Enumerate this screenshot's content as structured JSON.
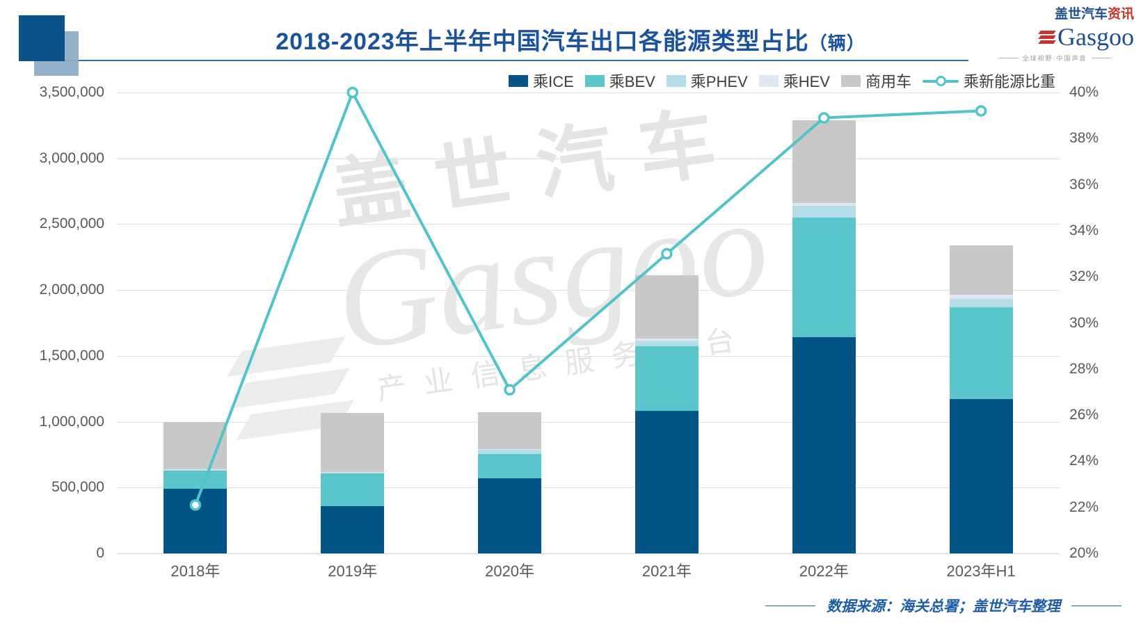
{
  "header": {
    "title": "2018-2023年上半年中国汽车出口各能源类型占比",
    "title_unit": "（辆）",
    "logo": {
      "cn_main": "盖世汽车",
      "cn_accent": "资讯",
      "en": "Gasgoo",
      "tagline": "全球视野·中国声音"
    }
  },
  "watermark": {
    "line1": "盖世汽车",
    "line2": "Gasgoo",
    "line3": "产业信息服务平台"
  },
  "footer": {
    "source": "数据来源：海关总署；盖世汽车整理"
  },
  "chart_data": {
    "type": "bar",
    "subtype": "stacked-bar-with-line",
    "title": "2018-2023年上半年中国汽车出口各能源类型占比（辆）",
    "categories": [
      "2018年",
      "2019年",
      "2020年",
      "2021年",
      "2022年",
      "2023年H1"
    ],
    "bar_series": [
      {
        "name": "乘ICE",
        "color": "#055488",
        "values": [
          490000,
          360000,
          570000,
          1080000,
          1640000,
          1170000
        ]
      },
      {
        "name": "乘BEV",
        "color": "#5ac6cc",
        "values": [
          140000,
          250000,
          185000,
          495000,
          910000,
          700000
        ]
      },
      {
        "name": "乘PHEV",
        "color": "#b5dde7",
        "values": [
          5000,
          5000,
          30000,
          40000,
          90000,
          60000
        ]
      },
      {
        "name": "乘HEV",
        "color": "#dfe7f2",
        "values": [
          3000,
          3000,
          5000,
          15000,
          20000,
          35000
        ]
      },
      {
        "name": "商用车",
        "color": "#c8c8c8",
        "values": [
          360000,
          450000,
          280000,
          480000,
          630000,
          375000
        ]
      }
    ],
    "line_series": {
      "name": "乘新能源比重",
      "color": "#4fc4ca",
      "values_pct": [
        22.1,
        40,
        27.1,
        33,
        38.9,
        39.2
      ]
    },
    "left_axis": {
      "min": 0,
      "max": 3500000,
      "tick_values": [
        0,
        500000,
        1000000,
        1500000,
        2000000,
        2500000,
        3000000,
        3500000
      ],
      "tick_labels": [
        "0",
        "500,000",
        "1,000,000",
        "1,500,000",
        "2,000,000",
        "2,500,000",
        "3,000,000",
        "3,500,000"
      ]
    },
    "right_axis": {
      "min": 20,
      "max": 40,
      "tick_values": [
        20,
        22,
        24,
        26,
        28,
        30,
        32,
        34,
        36,
        38,
        40
      ],
      "tick_labels": [
        "20%",
        "22%",
        "24%",
        "26%",
        "28%",
        "30%",
        "32%",
        "34%",
        "36%",
        "38%",
        "40%"
      ]
    },
    "grid": "horizontal-every-500000",
    "legend_position": "top-right"
  }
}
